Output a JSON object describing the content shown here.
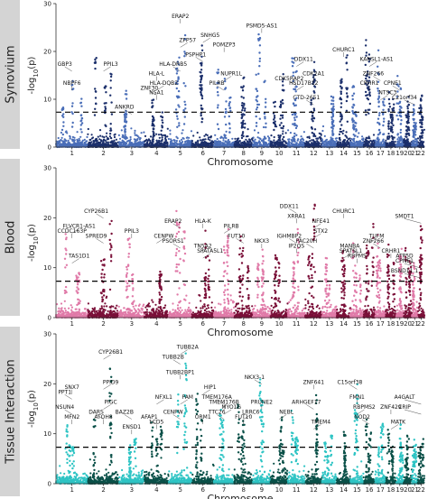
{
  "xlabel": "Chromosome",
  "ylabel": "-log10(p)",
  "chart_data": [
    {
      "type": "scatter",
      "panel": "Synovium",
      "ylim": [
        0,
        30
      ],
      "yticks": [
        0,
        10,
        20,
        30
      ],
      "threshold": 7.3,
      "grid": false,
      "colors": [
        "#4a6eb8",
        "#1b2f6b"
      ],
      "x_tick_labels": [
        "1",
        "2",
        "3",
        "4",
        "5",
        "6",
        "7",
        "8",
        "9",
        "10",
        "11",
        "12",
        "13",
        "14",
        "15",
        "16",
        "17",
        "18",
        "19",
        "20",
        "21",
        "22"
      ],
      "max_by_chromosome": [
        14,
        19,
        12,
        10,
        27,
        22,
        17,
        15,
        24,
        17,
        19,
        19,
        12,
        20,
        13,
        24,
        21,
        14,
        15,
        11,
        9,
        12
      ],
      "annotations": [
        {
          "chr": 1,
          "label": "GBP3",
          "y": 17
        },
        {
          "chr": 1,
          "label": "NBPF6",
          "y": 13
        },
        {
          "chr": 2,
          "label": "PPIL3",
          "y": 17
        },
        {
          "chr": 3,
          "label": "ANKRD",
          "y": 8
        },
        {
          "chr": 5,
          "label": "ERAP2",
          "y": 27
        },
        {
          "chr": 5,
          "label": "ZFP57",
          "y": 22
        },
        {
          "chr": 5,
          "label": "HLA-DRB5",
          "y": 17
        },
        {
          "chr": 4,
          "label": "HLA-L",
          "y": 15
        },
        {
          "chr": 4,
          "label": "HLA-DQB2",
          "y": 13
        },
        {
          "chr": 4,
          "label": "ZNF30",
          "y": 12
        },
        {
          "chr": 4,
          "label": "NSA1",
          "y": 11
        },
        {
          "chr": 6,
          "label": "SNHG5",
          "y": 23
        },
        {
          "chr": 6,
          "label": "PSPHP1",
          "y": 19
        },
        {
          "chr": 7,
          "label": "POMZP3",
          "y": 21
        },
        {
          "chr": 7,
          "label": "NUPR1L",
          "y": 15
        },
        {
          "chr": 7,
          "label": "PILRB",
          "y": 13
        },
        {
          "chr": 9,
          "label": "PSMD5-AS1",
          "y": 25
        },
        {
          "chr": 11,
          "label": "DDX11",
          "y": 18
        },
        {
          "chr": 11,
          "label": "CDK5RAP2",
          "y": 14
        },
        {
          "chr": 12,
          "label": "CDK2A1",
          "y": 15
        },
        {
          "chr": 11,
          "label": "HSD17B12",
          "y": 13
        },
        {
          "chr": 12,
          "label": "CTD-2651",
          "y": 10
        },
        {
          "chr": 14,
          "label": "CHURC1",
          "y": 20
        },
        {
          "chr": 16,
          "label": "KANSL1-AS1",
          "y": 18
        },
        {
          "chr": 17,
          "label": "ZNF266",
          "y": 15
        },
        {
          "chr": 16,
          "label": "CRHR1",
          "y": 13
        },
        {
          "chr": 17,
          "label": "NTSC3",
          "y": 11
        },
        {
          "chr": 19,
          "label": "CPNE1",
          "y": 13
        },
        {
          "chr": 21,
          "label": "C21orf34",
          "y": 10
        }
      ]
    },
    {
      "type": "scatter",
      "panel": "Blood",
      "ylim": [
        0,
        30
      ],
      "yticks": [
        0,
        10,
        20,
        30
      ],
      "threshold": 7.3,
      "grid": false,
      "colors": [
        "#e07aa8",
        "#7a0f38"
      ],
      "x_tick_labels": [
        "1",
        "2",
        "3",
        "4",
        "5",
        "6",
        "7",
        "8",
        "9",
        "10",
        "11",
        "12",
        "13",
        "14",
        "15",
        "16",
        "17",
        "18",
        "19",
        "20",
        "21",
        "22"
      ],
      "max_by_chromosome": [
        17,
        20,
        16,
        11,
        22,
        19,
        18,
        17,
        14,
        13,
        18,
        24,
        12,
        14,
        15,
        19,
        17,
        15,
        16,
        14,
        11,
        21
      ],
      "annotations": [
        {
          "chr": 2,
          "label": "CYP26B1",
          "y": 21
        },
        {
          "chr": 1,
          "label": "CCDC163P",
          "y": 17
        },
        {
          "chr": 1,
          "label": "FLVCR1-AS1",
          "y": 18
        },
        {
          "chr": 2,
          "label": "SPRED9",
          "y": 16
        },
        {
          "chr": 3,
          "label": "PPIL3",
          "y": 17
        },
        {
          "chr": 1,
          "label": "TAS1D1",
          "y": 12
        },
        {
          "chr": 5,
          "label": "ERAP2",
          "y": 19
        },
        {
          "chr": 6,
          "label": "HLA-K",
          "y": 19
        },
        {
          "chr": 4,
          "label": "CENPW",
          "y": 16
        },
        {
          "chr": 5,
          "label": "PSORS1",
          "y": 15
        },
        {
          "chr": 6,
          "label": "TN5A2",
          "y": 14
        },
        {
          "chr": 7,
          "label": "PILRB",
          "y": 18
        },
        {
          "chr": 8,
          "label": "FUT10",
          "y": 16
        },
        {
          "chr": 9,
          "label": "NKX3",
          "y": 15
        },
        {
          "chr": 6,
          "label": "SPATA5L1",
          "y": 13
        },
        {
          "chr": 11,
          "label": "DDX11",
          "y": 22
        },
        {
          "chr": 11,
          "label": "XRRA1",
          "y": 20
        },
        {
          "chr": 12,
          "label": "NFE41",
          "y": 19
        },
        {
          "chr": 11,
          "label": "IGHMBP2",
          "y": 16
        },
        {
          "chr": 11,
          "label": "IP2QS",
          "y": 14
        },
        {
          "chr": 12,
          "label": "STX2",
          "y": 17
        },
        {
          "chr": 12,
          "label": "PAC20H",
          "y": 15
        },
        {
          "chr": 14,
          "label": "CHURC1",
          "y": 21
        },
        {
          "chr": 14,
          "label": "SPATSL1",
          "y": 13
        },
        {
          "chr": 15,
          "label": "MANBA",
          "y": 14
        },
        {
          "chr": 15,
          "label": "RBPMS",
          "y": 12
        },
        {
          "chr": 16,
          "label": "TUFM",
          "y": 16
        },
        {
          "chr": 17,
          "label": "ZNF266",
          "y": 15
        },
        {
          "chr": 18,
          "label": "CRHR1",
          "y": 13
        },
        {
          "chr": 22,
          "label": "SMDT1",
          "y": 20
        },
        {
          "chr": 21,
          "label": "ATP5D",
          "y": 12
        },
        {
          "chr": 22,
          "label": "CPNE1",
          "y": 11
        },
        {
          "chr": 22,
          "label": "BSND11.1",
          "y": 9
        }
      ]
    },
    {
      "type": "scatter",
      "panel": "Tissue Interaction",
      "ylim": [
        0,
        30
      ],
      "yticks": [
        0,
        10,
        20,
        30
      ],
      "threshold": 7.3,
      "grid": false,
      "colors": [
        "#2ec4c4",
        "#0a5048"
      ],
      "x_tick_labels": [
        "1",
        "2",
        "3",
        "4",
        "5",
        "6",
        "7",
        "8",
        "9",
        "10",
        "11",
        "12",
        "13",
        "14",
        "15",
        "16",
        "17",
        "18",
        "19",
        "20",
        "21",
        "22"
      ],
      "max_by_chromosome": [
        14,
        24,
        10,
        13,
        27,
        18,
        16,
        16,
        21,
        14,
        16,
        19,
        10,
        12,
        21,
        14,
        13,
        12,
        12,
        10,
        9,
        10
      ],
      "annotations": [
        {
          "chr": 1,
          "label": "PPT1",
          "y": 18
        },
        {
          "chr": 1,
          "label": "SNX7",
          "y": 19
        },
        {
          "chr": 2,
          "label": "CYP26B1",
          "y": 26
        },
        {
          "chr": 1,
          "label": "NSUN4",
          "y": 15
        },
        {
          "chr": 1,
          "label": "MFN2",
          "y": 13
        },
        {
          "chr": 2,
          "label": "PIGC",
          "y": 16
        },
        {
          "chr": 2,
          "label": "DARS",
          "y": 14
        },
        {
          "chr": 2,
          "label": "ATOH8",
          "y": 13
        },
        {
          "chr": 2,
          "label": "PPID9",
          "y": 20
        },
        {
          "chr": 3,
          "label": "BAZ2B",
          "y": 14
        },
        {
          "chr": 3,
          "label": "ENSD1",
          "y": 11
        },
        {
          "chr": 4,
          "label": "NFXL1",
          "y": 17
        },
        {
          "chr": 4,
          "label": "AFAP1",
          "y": 13
        },
        {
          "chr": 4,
          "label": "LCD5",
          "y": 12
        },
        {
          "chr": 5,
          "label": "TUBB2A",
          "y": 27
        },
        {
          "chr": 5,
          "label": "TUBB2B",
          "y": 25
        },
        {
          "chr": 5,
          "label": "TUBB2BP1",
          "y": 22
        },
        {
          "chr": 5,
          "label": "PAM",
          "y": 17
        },
        {
          "chr": 5,
          "label": "CENPW",
          "y": 14
        },
        {
          "chr": 6,
          "label": "ORM1",
          "y": 13
        },
        {
          "chr": 6,
          "label": "HIP1",
          "y": 19
        },
        {
          "chr": 7,
          "label": "TMEM176A",
          "y": 17
        },
        {
          "chr": 7,
          "label": "TMEM176B",
          "y": 16
        },
        {
          "chr": 7,
          "label": "MYO1G",
          "y": 15
        },
        {
          "chr": 7,
          "label": "TTC26",
          "y": 14
        },
        {
          "chr": 8,
          "label": "FUT10",
          "y": 13
        },
        {
          "chr": 8,
          "label": "LRRC6",
          "y": 14
        },
        {
          "chr": 9,
          "label": "NKX3-1",
          "y": 21
        },
        {
          "chr": 9,
          "label": "PRUNE2",
          "y": 16
        },
        {
          "chr": 10,
          "label": "NEBL",
          "y": 14
        },
        {
          "chr": 12,
          "label": "ARHGEF17",
          "y": 16
        },
        {
          "chr": 12,
          "label": "ZNF641",
          "y": 20
        },
        {
          "chr": 12,
          "label": "TMEM4",
          "y": 12
        },
        {
          "chr": 15,
          "label": "C15orf38",
          "y": 20
        },
        {
          "chr": 15,
          "label": "FMN1",
          "y": 17
        },
        {
          "chr": 15,
          "label": "RBPMS2",
          "y": 15
        },
        {
          "chr": 16,
          "label": "NOD2",
          "y": 13
        },
        {
          "chr": 18,
          "label": "ZNF429",
          "y": 15
        },
        {
          "chr": 18,
          "label": "MATK",
          "y": 12
        },
        {
          "chr": 22,
          "label": "A4GALT",
          "y": 17
        },
        {
          "chr": 22,
          "label": "CRIP",
          "y": 15
        }
      ]
    }
  ]
}
